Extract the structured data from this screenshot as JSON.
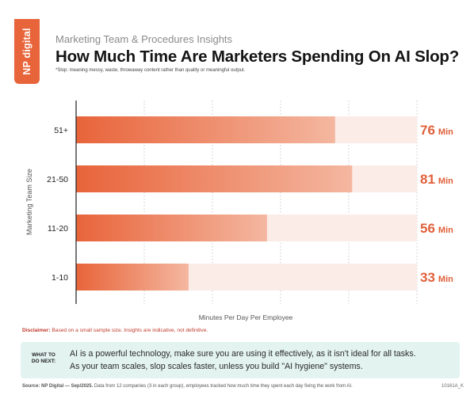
{
  "brand": {
    "logo_text": "NP digital",
    "accent": "#e8643a"
  },
  "header": {
    "subtitle": "Marketing Team & Procedures Insights",
    "title": "How Much Time Are Marketers Spending On AI Slop?",
    "footnote": "*Slop: meaning messy, waste, throwaway content rather than quality or meaningful output."
  },
  "chart_data": {
    "type": "bar",
    "orientation": "horizontal",
    "categories": [
      "51+",
      "21-50",
      "11-20",
      "1-10"
    ],
    "values": [
      76,
      81,
      56,
      33
    ],
    "value_labels": [
      "76 Min",
      "81 Min",
      "56 Min",
      "33 Min"
    ],
    "xlabel": "Minutes Per Day Per Employee",
    "ylabel": "Marketing Team Size",
    "xlim": [
      0,
      100
    ],
    "grid": true,
    "colors": {
      "bar_start": "#e8643a",
      "bar_end": "#f4b7a0",
      "track": "#fbece7",
      "value_text": "#e0603a"
    }
  },
  "disclaimer": {
    "label": "Disclaimer:",
    "text": " Based on a small sample size. Insights are indicative, not definitive."
  },
  "callout": {
    "label_line1": "WHAT TO",
    "label_line2": "DO NEXT:",
    "line1": "AI is a powerful technology, make sure you are using it effectively, as it isn't ideal for all tasks.",
    "line2": "As your team scales, slop scales faster, unless you build \"AI hygiene\" systems."
  },
  "source": {
    "label": "Source: NP Digital — Sep/2025.",
    "text": " Data from 12 companies (3 in each group), employees tracked how much time they spent each day fixing the work from AI.",
    "code": "10161A_K"
  }
}
